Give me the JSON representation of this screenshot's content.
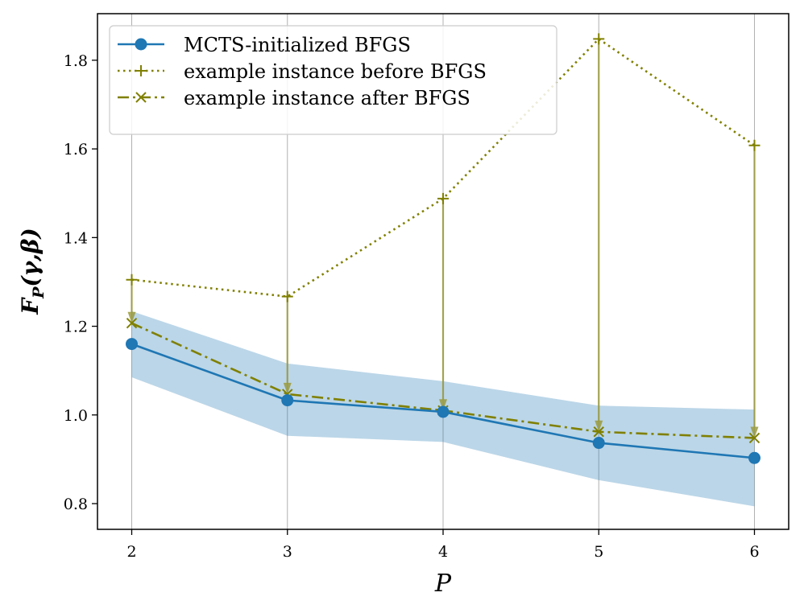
{
  "chart_data": {
    "type": "line",
    "title": "",
    "xlabel": "P",
    "ylabel": "F_P(γ,β)",
    "ylabel_parts": {
      "base": "F",
      "subscript": "P",
      "args": "(γ,β)"
    },
    "x": [
      2,
      3,
      4,
      5,
      6
    ],
    "xlim": [
      1.78,
      6.22
    ],
    "ylim": [
      0.742,
      1.905
    ],
    "xticks": [
      2,
      3,
      4,
      5,
      6
    ],
    "yticks": [
      0.8,
      1.0,
      1.2,
      1.4,
      1.6,
      1.8
    ],
    "ytick_labels": [
      "0.8",
      "1.0",
      "1.2",
      "1.4",
      "1.6",
      "1.8"
    ],
    "grid": "vertical",
    "legend_position": "top-left",
    "series": [
      {
        "name": "MCTS-initialized BFGS",
        "values": [
          1.16,
          1.033,
          1.007,
          0.937,
          0.903
        ],
        "band_lower": [
          1.085,
          0.953,
          0.939,
          0.853,
          0.794
        ],
        "band_upper": [
          1.234,
          1.116,
          1.076,
          1.021,
          1.012
        ],
        "color": "#1f77b4",
        "marker": "circle",
        "linestyle": "solid"
      },
      {
        "name": "example instance before BFGS",
        "values": [
          1.305,
          1.267,
          1.488,
          1.848,
          1.608
        ],
        "color": "#808000",
        "marker": "plus",
        "linestyle": "dotted"
      },
      {
        "name": "example instance after BFGS",
        "values": [
          1.207,
          1.047,
          1.01,
          0.962,
          0.948
        ],
        "color": "#808000",
        "marker": "x",
        "linestyle": "dashdot"
      }
    ],
    "annotations": "arrows from before-BFGS values down to after-BFGS values at each P",
    "band_color": "#1f77b4",
    "arrow_color": "#9a9a3c"
  }
}
